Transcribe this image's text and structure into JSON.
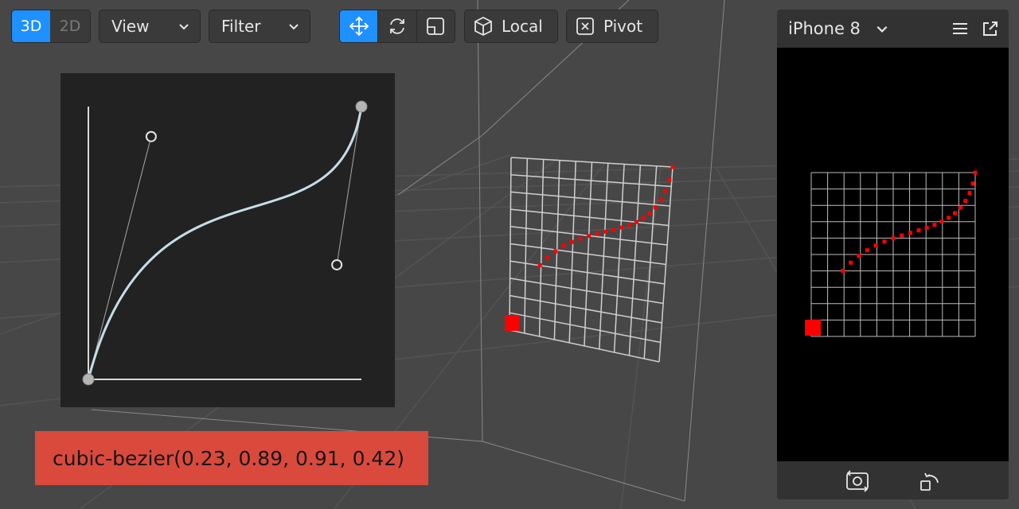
{
  "toolbar": {
    "mode_3d": "3D",
    "mode_2d": "2D",
    "active_mode": "3D",
    "view_label": "View",
    "filter_label": "Filter",
    "tools": [
      "move-icon",
      "rotate-icon",
      "scale-icon"
    ],
    "active_tool": "move-icon",
    "local_label": "Local",
    "pivot_label": "Pivot"
  },
  "bezier": {
    "expression": "cubic-bezier(0.23, 0.89, 0.91, 0.42)",
    "p1": [
      0.23,
      0.89
    ],
    "p2": [
      0.91,
      0.42
    ]
  },
  "device_preview": {
    "name": "iPhone 8",
    "header_icons": [
      "chevron-down-icon",
      "menu-icon",
      "popout-icon"
    ],
    "footer_icons": [
      "rotate-camera-icon",
      "rotate-device-icon"
    ]
  },
  "colors": {
    "accent": "#1e90ff",
    "label_bg": "#d94a3d",
    "curve": "#c7dde8",
    "marker": "#ff0000"
  }
}
